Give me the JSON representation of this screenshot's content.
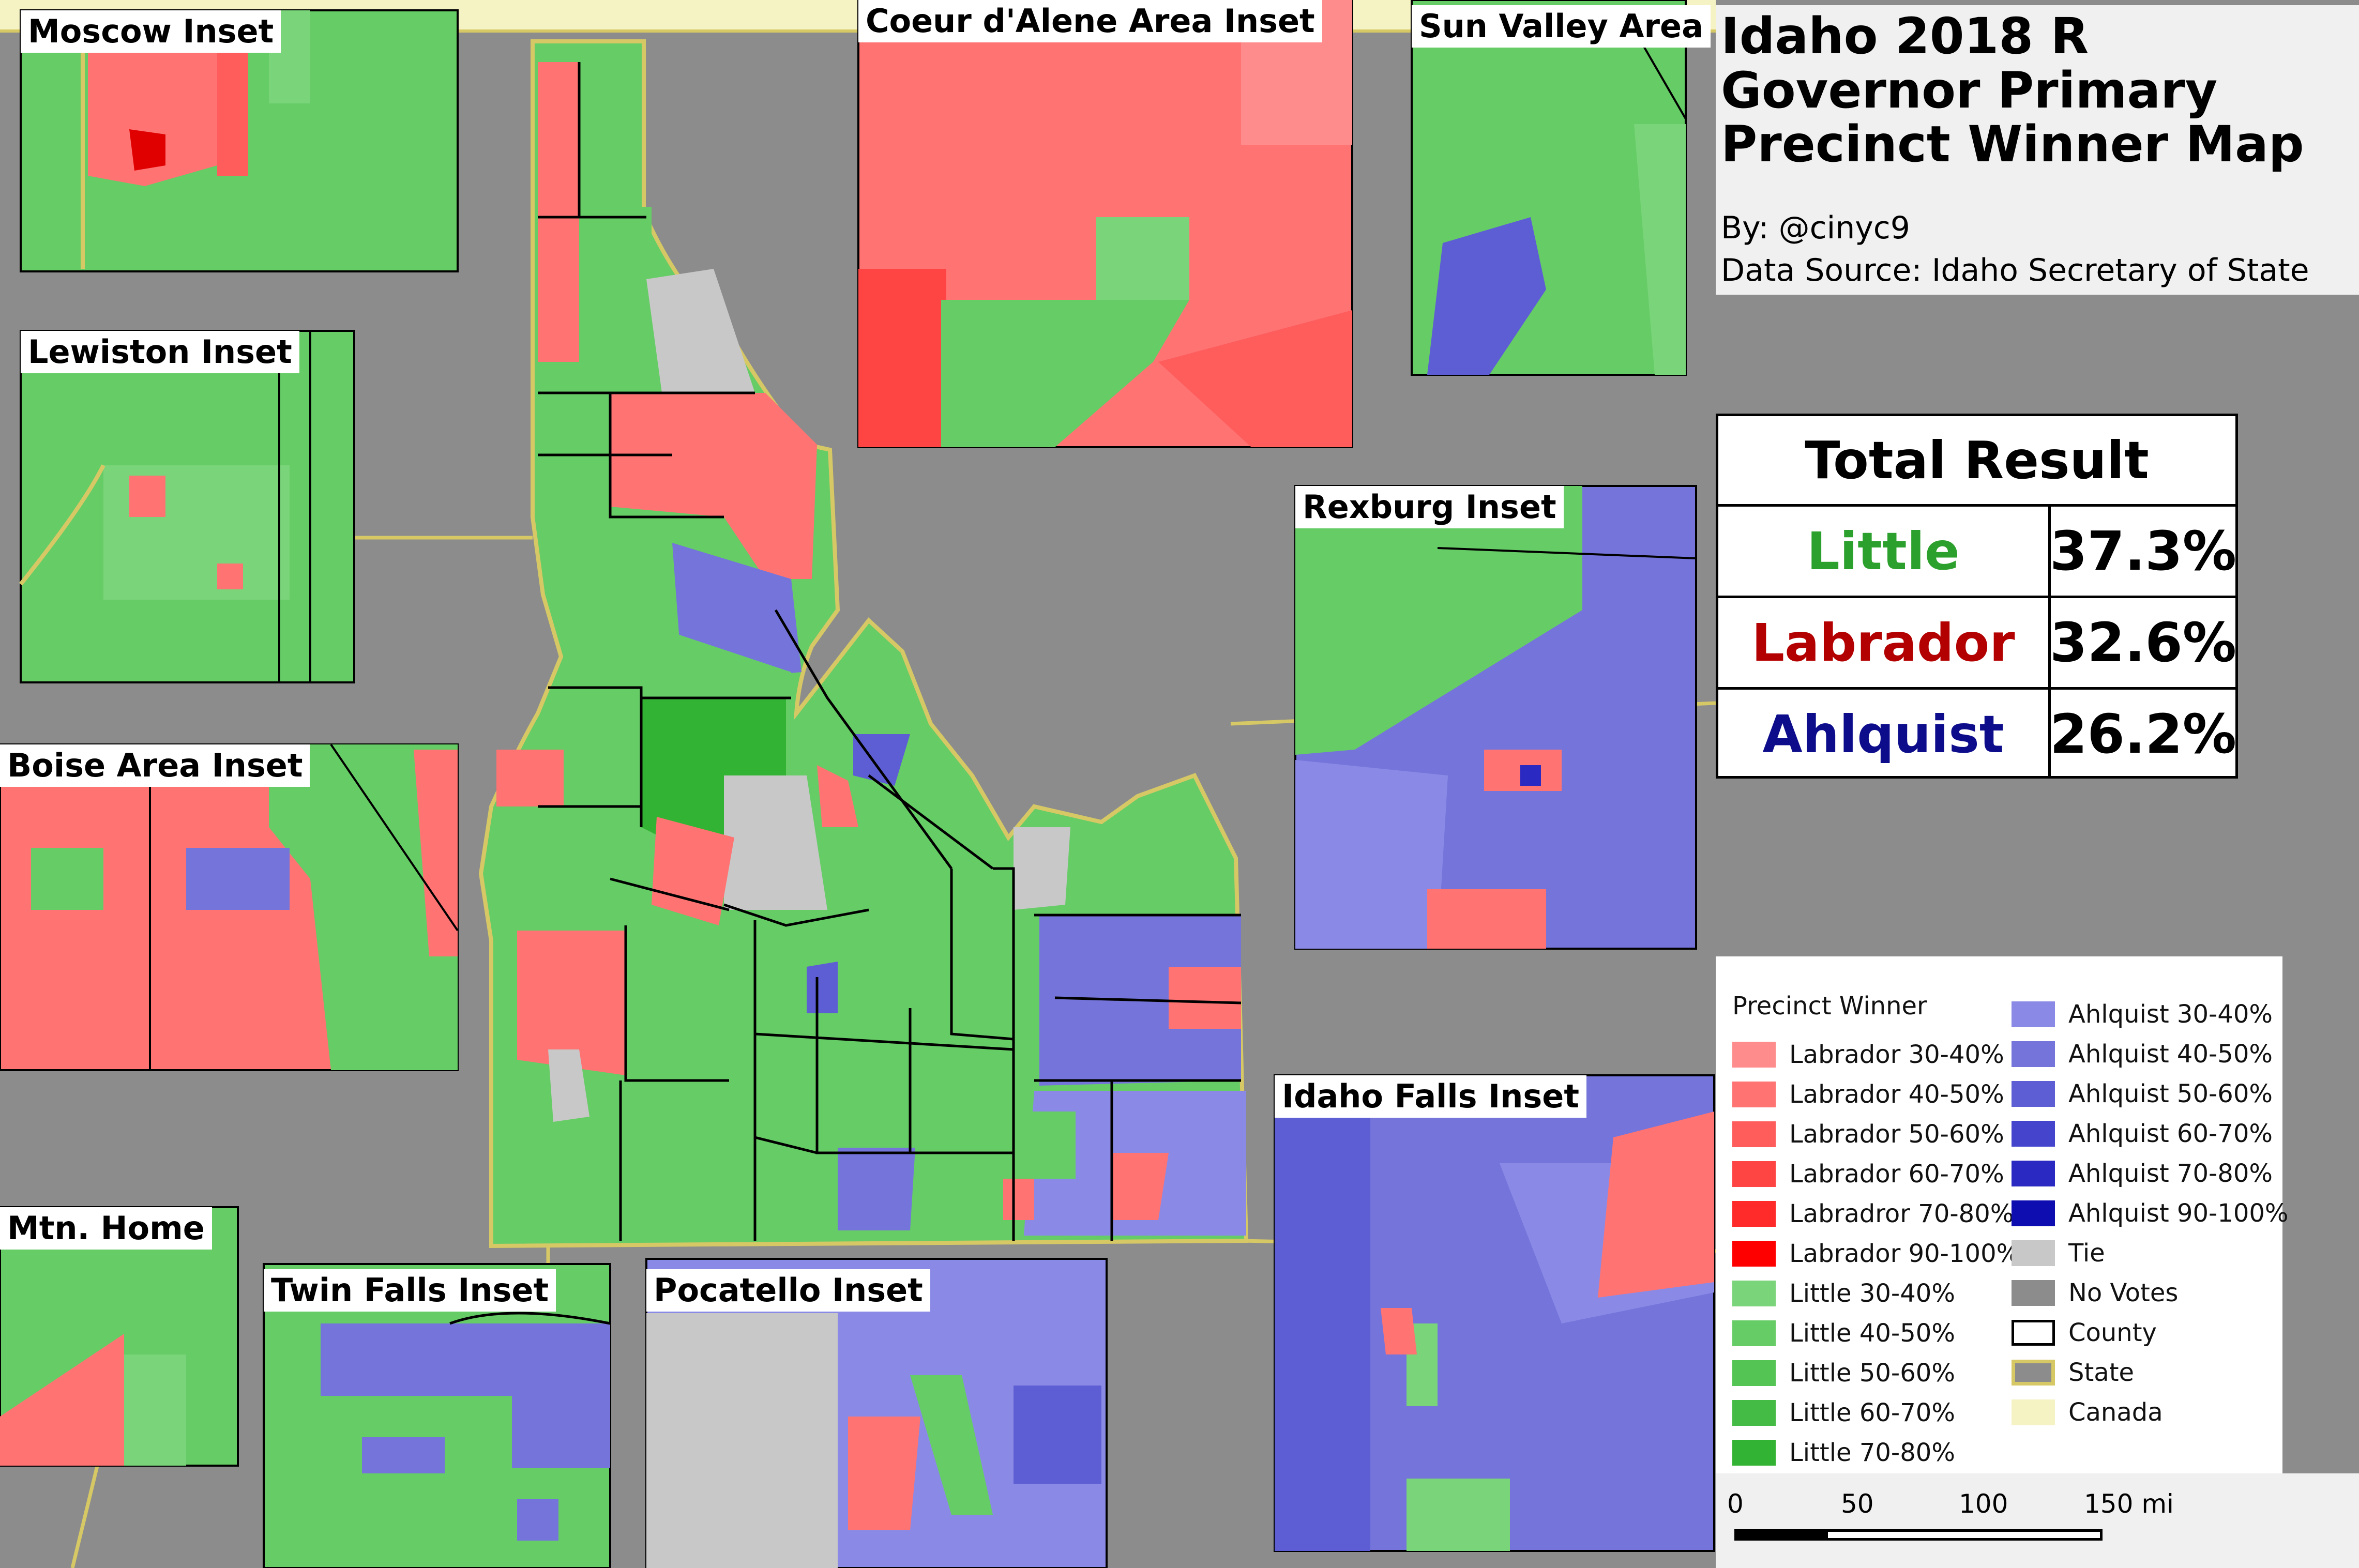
{
  "title": "Idaho 2018 R Governor Primary Precinct Winner Map",
  "byline": "By: @cinyc9",
  "source": "Data Source: Idaho Secretary of State",
  "insets": [
    {
      "key": "moscow",
      "label": "Moscow Inset"
    },
    {
      "key": "lewiston",
      "label": "Lewiston Inset"
    },
    {
      "key": "boise",
      "label": "Boise Area Inset"
    },
    {
      "key": "mtn-home",
      "label": "Mtn. Home"
    },
    {
      "key": "twin-falls",
      "label": "Twin Falls Inset"
    },
    {
      "key": "pocatello",
      "label": "Pocatello Inset"
    },
    {
      "key": "coeur-dalene",
      "label": "Coeur d'Alene Area Inset"
    },
    {
      "key": "sun-valley",
      "label": "Sun Valley Area"
    },
    {
      "key": "rexburg",
      "label": "Rexburg Inset"
    },
    {
      "key": "idaho-falls",
      "label": "Idaho Falls Inset"
    }
  ],
  "results": {
    "heading": "Total Result",
    "rows": [
      {
        "name": "Little",
        "pct": "37.3%",
        "color": "#2ca02c"
      },
      {
        "name": "Labrador",
        "pct": "32.6%",
        "color": "#b30000"
      },
      {
        "name": "Ahlquist",
        "pct": "26.2%",
        "color": "#0d0d8c"
      }
    ]
  },
  "legend": {
    "heading": "Precinct Winner",
    "items": [
      {
        "label": "Labrador 30-40%",
        "color": "#ff8c8c"
      },
      {
        "label": "Labrador 40-50%",
        "color": "#ff7373"
      },
      {
        "label": "Labrador 50-60%",
        "color": "#ff5c5c"
      },
      {
        "label": "Labrador 60-70%",
        "color": "#ff4444"
      },
      {
        "label": "Labradror 70-80%",
        "color": "#ff2a2a"
      },
      {
        "label": "Labrador 90-100%",
        "color": "#ff0000"
      },
      {
        "label": "Little 30-40%",
        "color": "#7ad47a"
      },
      {
        "label": "Little 40-50%",
        "color": "#66cc66"
      },
      {
        "label": "Little 50-60%",
        "color": "#54c454"
      },
      {
        "label": "Little 60-70%",
        "color": "#44bb44"
      },
      {
        "label": "Little 70-80%",
        "color": "#33b333"
      },
      {
        "label": "Ahlquist 30-40%",
        "color": "#8a8ae6"
      },
      {
        "label": "Ahlquist 40-50%",
        "color": "#7474db"
      },
      {
        "label": "Ahlquist 50-60%",
        "color": "#5e5ed4"
      },
      {
        "label": "Ahlquist 60-70%",
        "color": "#4444cc"
      },
      {
        "label": "Ahlquist 70-80%",
        "color": "#2a2ac2"
      },
      {
        "label": "Ahlquist 90-100%",
        "color": "#0d0db0"
      },
      {
        "label": "Tie",
        "color": "#c8c8c8"
      },
      {
        "label": "No Votes",
        "color": "#8c8c8c"
      },
      {
        "label": "County",
        "color": "#ffffff"
      },
      {
        "label": "State",
        "color": "#8c8c8c"
      },
      {
        "label": "Canada",
        "color": "#f5f3c4"
      }
    ]
  },
  "scale": {
    "ticks": [
      "0",
      "50",
      "100",
      "150 mi"
    ]
  }
}
